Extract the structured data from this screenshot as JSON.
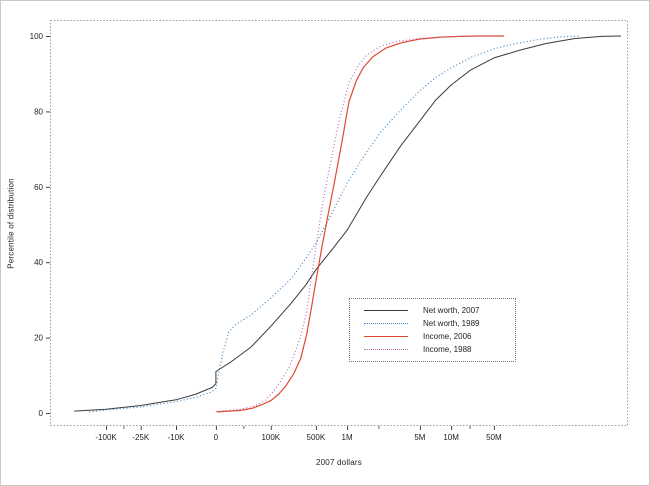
{
  "chart_data": {
    "type": "line",
    "title": "",
    "xlabel": "2007 dollars",
    "ylabel": "Percentile of distribution",
    "ylim": [
      0,
      100
    ],
    "grid": false,
    "legend_position": "inside-lower-right",
    "y_ticks": [
      0,
      20,
      40,
      60,
      80,
      100
    ],
    "x_ticks": [
      {
        "value": -100000,
        "label": "-100K"
      },
      {
        "value": -25000,
        "label": "-25K"
      },
      {
        "value": -10000,
        "label": "-10K"
      },
      {
        "value": 0,
        "label": "0"
      },
      {
        "value": 100000,
        "label": "100K"
      },
      {
        "value": 500000,
        "label": "500K"
      },
      {
        "value": 1000000,
        "label": "1M"
      },
      {
        "value": 5000000,
        "label": "5M"
      },
      {
        "value": 10000000,
        "label": "10M"
      },
      {
        "value": 50000000,
        "label": "50M"
      }
    ],
    "x_minor_ticks": [
      -50000,
      50000,
      2000000,
      20000000
    ],
    "x_scale_control_points": [
      [
        -1000000,
        0.0
      ],
      [
        -100000,
        0.097
      ],
      [
        -25000,
        0.157
      ],
      [
        -10000,
        0.218
      ],
      [
        0,
        0.287
      ],
      [
        100000,
        0.382
      ],
      [
        500000,
        0.46
      ],
      [
        1000000,
        0.514
      ],
      [
        5000000,
        0.64
      ],
      [
        10000000,
        0.694
      ],
      [
        50000000,
        0.768
      ],
      [
        1000000000,
        0.907
      ],
      [
        10000000000,
        0.9965
      ]
    ],
    "series": [
      {
        "name": "Net worth, 2007",
        "color": "#3a3a3a",
        "style": "solid",
        "points": [
          [
            -370000,
            0.5
          ],
          [
            -100000,
            1
          ],
          [
            -25000,
            2
          ],
          [
            -10000,
            3.5
          ],
          [
            -5000,
            5
          ],
          [
            -900,
            6.8
          ],
          [
            0,
            7.8
          ],
          [
            0,
            11
          ],
          [
            27000,
            13.5
          ],
          [
            64000,
            17.5
          ],
          [
            100000,
            23
          ],
          [
            204000,
            29
          ],
          [
            350000,
            34
          ],
          [
            500000,
            38
          ],
          [
            700000,
            43
          ],
          [
            1000000,
            48.5
          ],
          [
            1520000,
            57
          ],
          [
            2100000,
            63
          ],
          [
            3300000,
            71
          ],
          [
            5000000,
            77.5
          ],
          [
            7100000,
            83
          ],
          [
            10000000,
            87
          ],
          [
            21000000,
            91
          ],
          [
            50000000,
            94.2
          ],
          [
            137000000,
            96.3
          ],
          [
            350000000,
            98
          ],
          [
            1000000000,
            99.3
          ],
          [
            3300000000,
            99.9
          ],
          [
            8000000000,
            100
          ]
        ]
      },
      {
        "name": "Net worth, 1989",
        "color": "#3f86c5",
        "style": "dotted",
        "points": [
          [
            -200000,
            0.3
          ],
          [
            -100000,
            0.8
          ],
          [
            -25000,
            1.6
          ],
          [
            -10000,
            3
          ],
          [
            -5000,
            4.2
          ],
          [
            -1250,
            5.5
          ],
          [
            0,
            6.5
          ],
          [
            5500,
            11
          ],
          [
            12700,
            16
          ],
          [
            23600,
            21.5
          ],
          [
            36000,
            23.5
          ],
          [
            64000,
            26
          ],
          [
            100000,
            30.5
          ],
          [
            204000,
            35.5
          ],
          [
            350000,
            41
          ],
          [
            500000,
            45
          ],
          [
            700000,
            52.5
          ],
          [
            1000000,
            61
          ],
          [
            1520000,
            69
          ],
          [
            2100000,
            74.5
          ],
          [
            3300000,
            80.5
          ],
          [
            5000000,
            85.5
          ],
          [
            7100000,
            89
          ],
          [
            10000000,
            91.5
          ],
          [
            21000000,
            94.3
          ],
          [
            50000000,
            96.6
          ],
          [
            114000000,
            98
          ],
          [
            290000000,
            99.2
          ],
          [
            610000000,
            99.8
          ],
          [
            1250000000,
            100
          ]
        ]
      },
      {
        "name": "Income, 2006",
        "color": "#e1492f",
        "style": "solid",
        "points": [
          [
            2000,
            0.3
          ],
          [
            45000,
            0.7
          ],
          [
            67000,
            1.3
          ],
          [
            85000,
            2.3
          ],
          [
            100000,
            3.3
          ],
          [
            133000,
            5
          ],
          [
            171000,
            7.2
          ],
          [
            228000,
            10.5
          ],
          [
            292000,
            14.5
          ],
          [
            362000,
            21
          ],
          [
            433000,
            28.5
          ],
          [
            500000,
            35
          ],
          [
            572000,
            44
          ],
          [
            654000,
            52.5
          ],
          [
            765000,
            62
          ],
          [
            894000,
            72
          ],
          [
            1040000,
            82.5
          ],
          [
            1220000,
            88
          ],
          [
            1420000,
            91.5
          ],
          [
            1770000,
            94.5
          ],
          [
            2360000,
            96.8
          ],
          [
            3300000,
            98.2
          ],
          [
            5000000,
            99.2
          ],
          [
            8000000,
            99.7
          ],
          [
            14500000,
            99.9
          ],
          [
            31000000,
            100
          ],
          [
            73000000,
            100
          ]
        ]
      },
      {
        "name": "Income, 1988",
        "color": "#c06cb0",
        "style": "dotted",
        "points": [
          [
            0,
            0.4
          ],
          [
            45000,
            1
          ],
          [
            73000,
            2
          ],
          [
            91000,
            3.5
          ],
          [
            107000,
            5.5
          ],
          [
            143000,
            8.5
          ],
          [
            190000,
            12
          ],
          [
            244000,
            16.5
          ],
          [
            292000,
            20.5
          ],
          [
            362000,
            27
          ],
          [
            418000,
            35
          ],
          [
            500000,
            44
          ],
          [
            585000,
            56
          ],
          [
            700000,
            67
          ],
          [
            836000,
            77.5
          ],
          [
            1040000,
            87.5
          ],
          [
            1270000,
            92
          ],
          [
            1550000,
            95
          ],
          [
            2100000,
            97.3
          ],
          [
            2940000,
            98.5
          ],
          [
            5000000,
            99.4
          ],
          [
            9000000,
            99.8
          ],
          [
            21000000,
            100
          ],
          [
            45000000,
            100
          ]
        ]
      }
    ]
  }
}
